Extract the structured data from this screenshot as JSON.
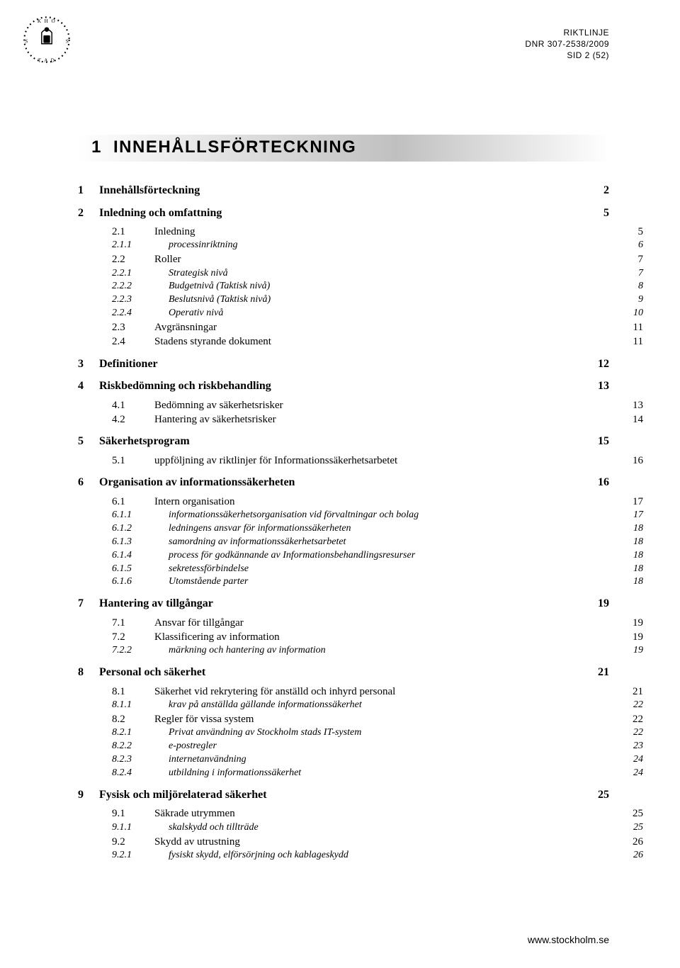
{
  "header": {
    "line1": "RIKTLINJE",
    "line2": "DNR 307-2538/2009",
    "line3": "SID 2 (52)"
  },
  "footer": {
    "text": "www.stockholm.se"
  },
  "title": {
    "num": "1",
    "text": "INNEHÅLLSFÖRTECKNING"
  },
  "toc": [
    {
      "level": 1,
      "num": "1",
      "title": "Innehållsförteckning",
      "page": "2"
    },
    {
      "level": 1,
      "num": "2",
      "title": "Inledning och omfattning",
      "page": "5"
    },
    {
      "level": 2,
      "num": "2.1",
      "title": "Inledning",
      "page": "5"
    },
    {
      "level": 3,
      "num": "2.1.1",
      "title": "processinriktning",
      "page": "6"
    },
    {
      "level": 2,
      "num": "2.2",
      "title": "Roller",
      "page": "7"
    },
    {
      "level": 3,
      "num": "2.2.1",
      "title": "Strategisk nivå",
      "page": "7"
    },
    {
      "level": 3,
      "num": "2.2.2",
      "title": "Budgetnivå (Taktisk nivå)",
      "page": "8"
    },
    {
      "level": 3,
      "num": "2.2.3",
      "title": "Beslutsnivå (Taktisk nivå)",
      "page": "9"
    },
    {
      "level": 3,
      "num": "2.2.4",
      "title": "Operativ nivå",
      "page": "10"
    },
    {
      "level": 2,
      "num": "2.3",
      "title": "Avgränsningar",
      "page": "11"
    },
    {
      "level": 2,
      "num": "2.4",
      "title": "Stadens styrande dokument",
      "page": "11"
    },
    {
      "level": 1,
      "num": "3",
      "title": "Definitioner",
      "page": "12"
    },
    {
      "level": 1,
      "num": "4",
      "title": "Riskbedömning och riskbehandling",
      "page": "13"
    },
    {
      "level": 2,
      "num": "4.1",
      "title": "Bedömning av säkerhetsrisker",
      "page": "13"
    },
    {
      "level": 2,
      "num": "4.2",
      "title": "Hantering av säkerhetsrisker",
      "page": "14"
    },
    {
      "level": 1,
      "num": "5",
      "title": "Säkerhetsprogram",
      "page": "15"
    },
    {
      "level": 2,
      "num": "5.1",
      "title": "uppföljning av riktlinjer för Informationssäkerhetsarbetet",
      "page": "16"
    },
    {
      "level": 1,
      "num": "6",
      "title": "Organisation av informationssäkerheten",
      "page": "16"
    },
    {
      "level": 2,
      "num": "6.1",
      "title": "Intern organisation",
      "page": "17"
    },
    {
      "level": 3,
      "num": "6.1.1",
      "title": "informationssäkerhetsorganisation vid förvaltningar och bolag",
      "page": "17"
    },
    {
      "level": 3,
      "num": "6.1.2",
      "title": "ledningens ansvar för informationssäkerheten",
      "page": "18"
    },
    {
      "level": 3,
      "num": "6.1.3",
      "title": "samordning av informationssäkerhetsarbetet",
      "page": "18"
    },
    {
      "level": 3,
      "num": "6.1.4",
      "title": "process för godkännande av Informationsbehandlingsresurser",
      "page": "18"
    },
    {
      "level": 3,
      "num": "6.1.5",
      "title": "sekretessförbindelse",
      "page": "18"
    },
    {
      "level": 3,
      "num": "6.1.6",
      "title": "Utomstående parter",
      "page": "18"
    },
    {
      "level": 1,
      "num": "7",
      "title": "Hantering av tillgångar",
      "page": "19"
    },
    {
      "level": 2,
      "num": "7.1",
      "title": "Ansvar för tillgångar",
      "page": "19"
    },
    {
      "level": 2,
      "num": "7.2",
      "title": "Klassificering av information",
      "page": "19"
    },
    {
      "level": 3,
      "num": "7.2.2",
      "title": "märkning och hantering av information",
      "page": "19"
    },
    {
      "level": 1,
      "num": "8",
      "title": "Personal och säkerhet",
      "page": "21"
    },
    {
      "level": 2,
      "num": "8.1",
      "title": "Säkerhet vid rekrytering för anställd och inhyrd personal",
      "page": "21"
    },
    {
      "level": 3,
      "num": "8.1.1",
      "title": "krav på anställda gällande informationssäkerhet",
      "page": "22"
    },
    {
      "level": 2,
      "num": "8.2",
      "title": "Regler för vissa system",
      "page": "22"
    },
    {
      "level": 3,
      "num": "8.2.1",
      "title": "Privat användning av Stockholm stads IT-system",
      "page": "22"
    },
    {
      "level": 3,
      "num": "8.2.2",
      "title": "e-postregler",
      "page": "23"
    },
    {
      "level": 3,
      "num": "8.2.3",
      "title": "internetanvändning",
      "page": "24"
    },
    {
      "level": 3,
      "num": "8.2.4",
      "title": "utbildning i informationssäkerhet",
      "page": "24"
    },
    {
      "level": 1,
      "num": "9",
      "title": "Fysisk och miljörelaterad säkerhet",
      "page": "25"
    },
    {
      "level": 2,
      "num": "9.1",
      "title": "Säkrade utrymmen",
      "page": "25"
    },
    {
      "level": 3,
      "num": "9.1.1",
      "title": "skalskydd och tillträde",
      "page": "25"
    },
    {
      "level": 2,
      "num": "9.2",
      "title": "Skydd av utrustning",
      "page": "26"
    },
    {
      "level": 3,
      "num": "9.2.1",
      "title": "fysiskt skydd, elförsörjning och kablageskydd",
      "page": "26"
    }
  ],
  "colors": {
    "text": "#000000",
    "background": "#ffffff",
    "gradient": "#c0c0c0"
  }
}
